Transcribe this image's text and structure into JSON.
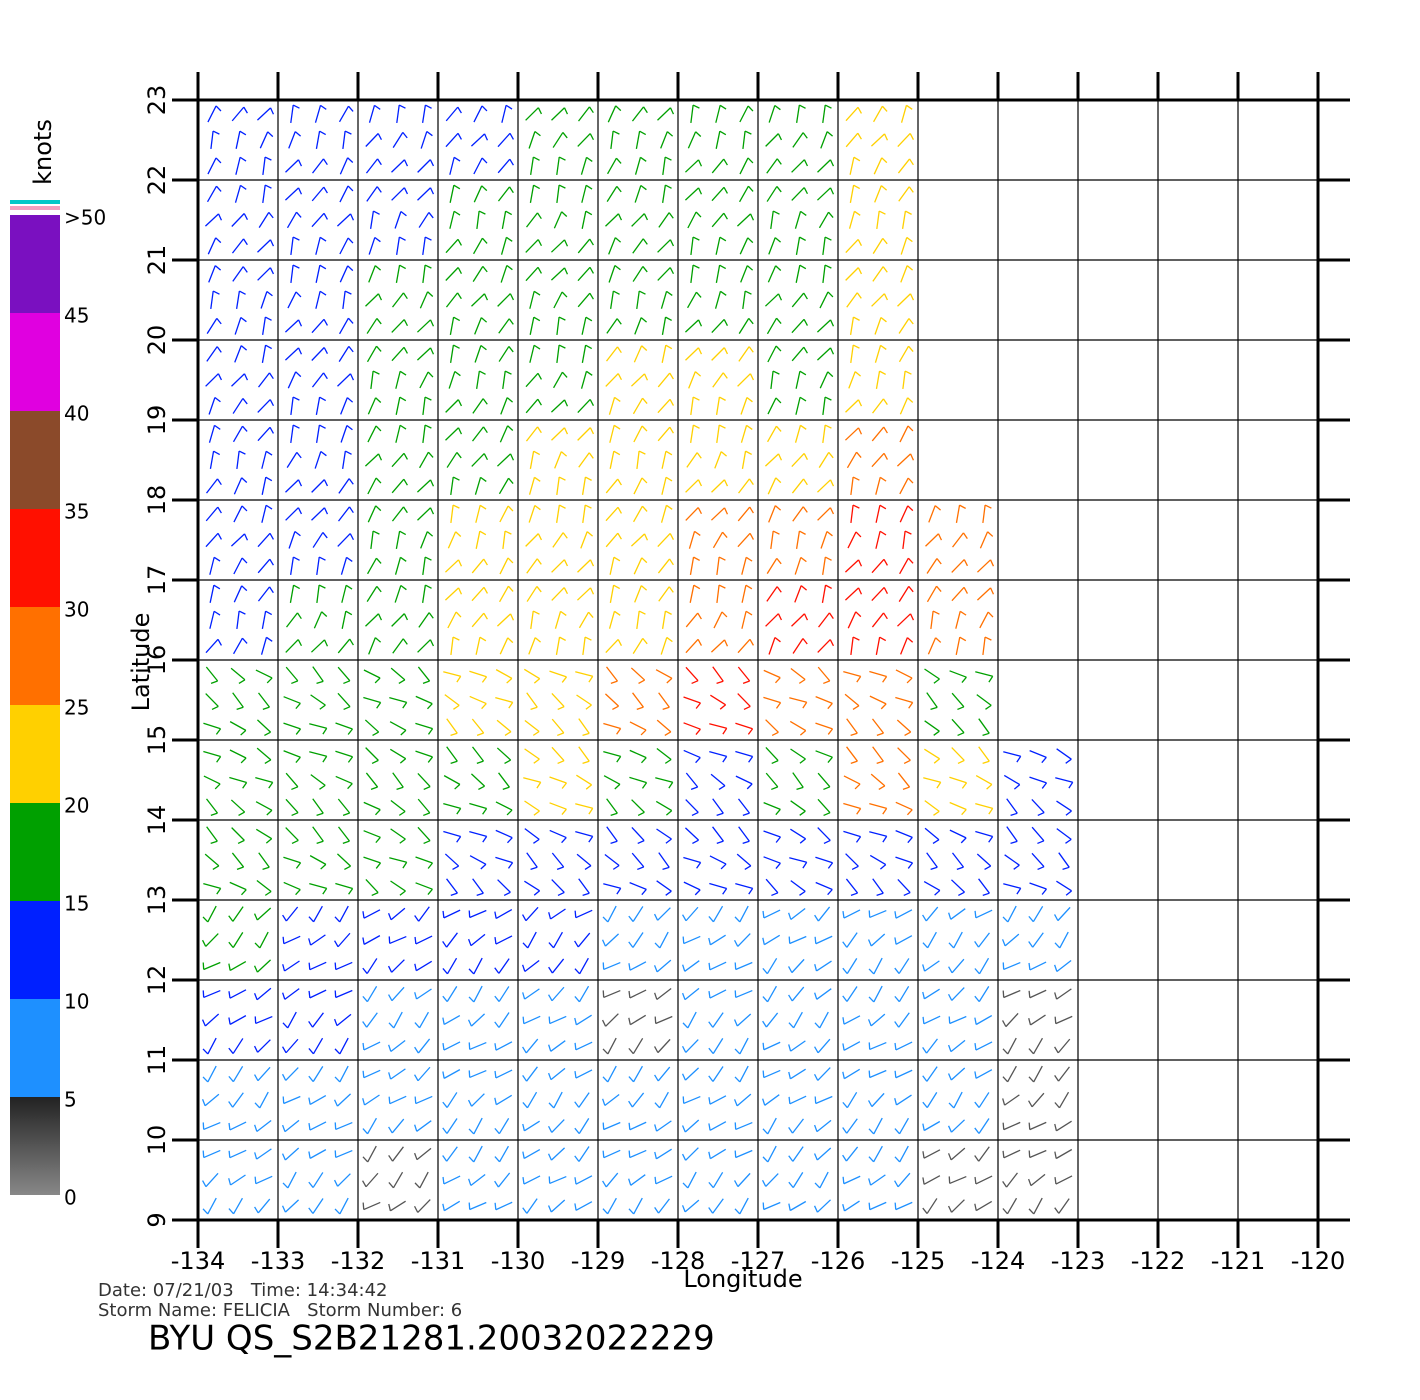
{
  "chart_data": {
    "type": "windfield",
    "xlabel": "Longitude",
    "ylabel": "Latitude",
    "xlim": [
      -134,
      -120
    ],
    "ylim": [
      9,
      23
    ],
    "xticks": [
      -134,
      -133,
      -132,
      -131,
      -130,
      -129,
      -128,
      -127,
      -126,
      -125,
      -124,
      -123,
      -122,
      -121,
      -120
    ],
    "yticks": [
      9,
      10,
      11,
      12,
      13,
      14,
      15,
      16,
      17,
      18,
      19,
      20,
      21,
      22,
      23
    ],
    "grid": true,
    "cell_lon": [
      -134,
      -133,
      -132,
      -131,
      -130,
      -129,
      -128,
      -127,
      -126,
      -125,
      -124,
      -123
    ],
    "cell_lat": [
      23,
      22,
      21,
      20,
      19,
      18,
      17,
      16,
      15,
      14,
      13,
      12,
      11,
      10
    ],
    "speed": [
      [
        10,
        10,
        12,
        12,
        15,
        17,
        18,
        18,
        20,
        null,
        null,
        null
      ],
      [
        10,
        12,
        14,
        15,
        17,
        17,
        18,
        18,
        20,
        null,
        null,
        null
      ],
      [
        11,
        12,
        15,
        16,
        17,
        18,
        18,
        18,
        20,
        null,
        null,
        null
      ],
      [
        12,
        13,
        16,
        18,
        19,
        20,
        20,
        18,
        22,
        null,
        null,
        null
      ],
      [
        12,
        14,
        16,
        18,
        20,
        21,
        20,
        20,
        27,
        null,
        null,
        null
      ],
      [
        12,
        14,
        17,
        20,
        21,
        22,
        25,
        28,
        30,
        28,
        null,
        null
      ],
      [
        13,
        15,
        18,
        21,
        22,
        24,
        28,
        30,
        30,
        25,
        null,
        null
      ],
      [
        17,
        17,
        19,
        21,
        22,
        25,
        30,
        25,
        28,
        18,
        null,
        null
      ],
      [
        18,
        18,
        18,
        18,
        20,
        17,
        12,
        16,
        25,
        20,
        14,
        null
      ],
      [
        17,
        16,
        15,
        14,
        12,
        10,
        12,
        11,
        12,
        12,
        10,
        null
      ],
      [
        16,
        14,
        13,
        12,
        10,
        8,
        7,
        8,
        8,
        7,
        6,
        null
      ],
      [
        10,
        10,
        9,
        8,
        8,
        4,
        6,
        6,
        7,
        6,
        4,
        null
      ],
      [
        8,
        9,
        9,
        8,
        9,
        7,
        8,
        8,
        7,
        6,
        3,
        null
      ],
      [
        6,
        5,
        4,
        6,
        6,
        7,
        6,
        5,
        5,
        4,
        3,
        null
      ]
    ],
    "colorbar": {
      "label": "knots",
      "lim": [
        0,
        50
      ],
      "ticks": [
        0,
        5,
        10,
        15,
        20,
        25,
        30,
        35,
        40,
        45,
        {
          "value": 50,
          "label": ">50"
        }
      ],
      "colors": [
        "#555555",
        "#1e90ff",
        "#0020ff",
        "#00a000",
        "#ffd000",
        "#ff7000",
        "#ff1000",
        "#8b4a2a",
        "#e000e0",
        "#7a10c0"
      ]
    },
    "date_line": "Date: 07/21/03   Time: 14:34:42",
    "storm_line": "Storm Name: FELICIA   Storm Number: 6",
    "file_title": "BYU QS_S2B21281.20032022229"
  }
}
